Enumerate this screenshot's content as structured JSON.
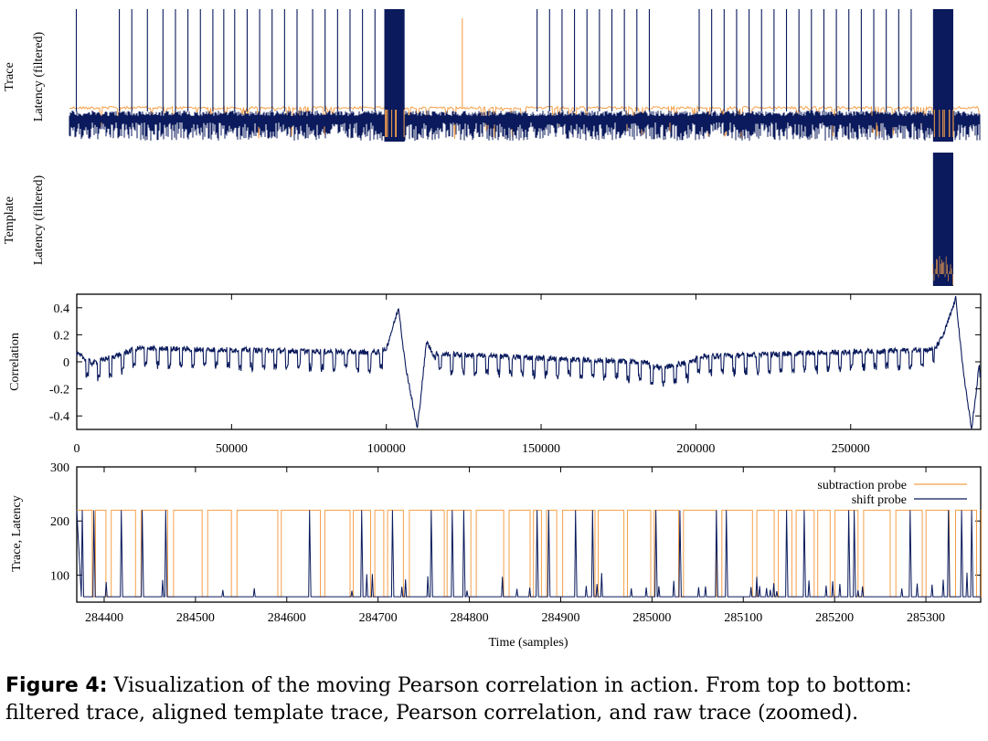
{
  "colors": {
    "dark": "#0a1a5c",
    "orange": "#f5a04a",
    "axis": "#000000"
  },
  "chart_data": [
    {
      "id": "panel1",
      "type": "line",
      "row_label": "Trace",
      "ylabel": "Latency (filtered)",
      "xlim": [
        0,
        292000
      ],
      "series": [
        {
          "name": "",
          "color": "#f5a04a",
          "description_values": {
            "baseline": 0.55,
            "noise_low": 0.35
          }
        },
        {
          "name": "",
          "color": "#0a1a5c"
        }
      ],
      "spike_positions": [
        2200,
        16000,
        20000,
        25000,
        30000,
        34000,
        38000,
        42000,
        46000,
        49500,
        53000,
        57000,
        61000,
        65000,
        69000,
        73000,
        78000,
        82000,
        86000,
        90000,
        94000,
        98000,
        150000,
        154000,
        158000,
        162000,
        166000,
        170000,
        174000,
        178000,
        182000,
        186000,
        202000,
        206000,
        210000,
        214000,
        218000,
        222000,
        226000,
        230000,
        234000,
        238000,
        242000,
        246000,
        250000,
        254000,
        258000,
        262000,
        266000,
        270000
      ],
      "dense_regions": [
        [
          101000,
          107500
        ],
        [
          277000,
          283500
        ]
      ],
      "orange_spikes": [
        126000
      ]
    },
    {
      "id": "panel2",
      "type": "line",
      "row_label": "Template",
      "ylabel": "Latency (filtered)",
      "xlim": [
        0,
        292000
      ],
      "dense_regions": [
        [
          277000,
          283500
        ]
      ]
    },
    {
      "id": "panel3",
      "type": "line",
      "ylabel": "Correlation",
      "xlim": [
        0,
        292000
      ],
      "ylim": [
        -0.5,
        0.5
      ],
      "y_ticks": [
        0.4,
        0.2,
        0,
        -0.2,
        -0.4
      ],
      "y_tick_labels": [
        "0.4",
        "0.2",
        "0",
        "-0.2",
        "-0.4"
      ],
      "x_ticks": [
        0,
        50000,
        100000,
        150000,
        200000,
        250000
      ],
      "x_tick_labels": [
        "0",
        "50000",
        "100000",
        "150000",
        "200000",
        "250000"
      ],
      "key_points": [
        [
          0,
          0.02
        ],
        [
          5000,
          -0.05
        ],
        [
          20000,
          0.06
        ],
        [
          98000,
          0.03
        ],
        [
          100000,
          0.1
        ],
        [
          104000,
          0.4
        ],
        [
          106000,
          0.0
        ],
        [
          110000,
          -0.5
        ],
        [
          113000,
          0.15
        ],
        [
          116000,
          0.02
        ],
        [
          190000,
          -0.05
        ],
        [
          200000,
          0.0
        ],
        [
          276000,
          0.05
        ],
        [
          280000,
          0.2
        ],
        [
          284000,
          0.47
        ],
        [
          286000,
          0.0
        ],
        [
          289000,
          -0.5
        ],
        [
          292000,
          0.02
        ]
      ]
    },
    {
      "id": "panel4",
      "type": "line",
      "ylabel": "Trace, Latency",
      "xlabel": "Time (samples)",
      "xlim": [
        284370,
        285360
      ],
      "ylim": [
        50,
        300
      ],
      "y_ticks": [
        100,
        200,
        300
      ],
      "y_tick_labels": [
        "100",
        "200",
        "300"
      ],
      "x_ticks": [
        284400,
        284500,
        284600,
        284700,
        284800,
        284900,
        285000,
        285100,
        285200,
        285300
      ],
      "x_tick_labels": [
        "284400",
        "284500",
        "284600",
        "284700",
        "284800",
        "284900",
        "285000",
        "285100",
        "285200",
        "285300"
      ],
      "levels": {
        "high": 220,
        "low": 60
      },
      "series": [
        {
          "name": "subtraction probe",
          "color": "#f5a04a"
        },
        {
          "name": "shift probe",
          "color": "#0a1a5c"
        }
      ],
      "legend": "top-right"
    }
  ],
  "caption": {
    "label": "Figure 4:",
    "text": "Visualization of the moving Pearson correlation in action. From top to bottom: filtered trace, aligned template trace, Pearson correlation, and raw trace (zoomed)."
  }
}
